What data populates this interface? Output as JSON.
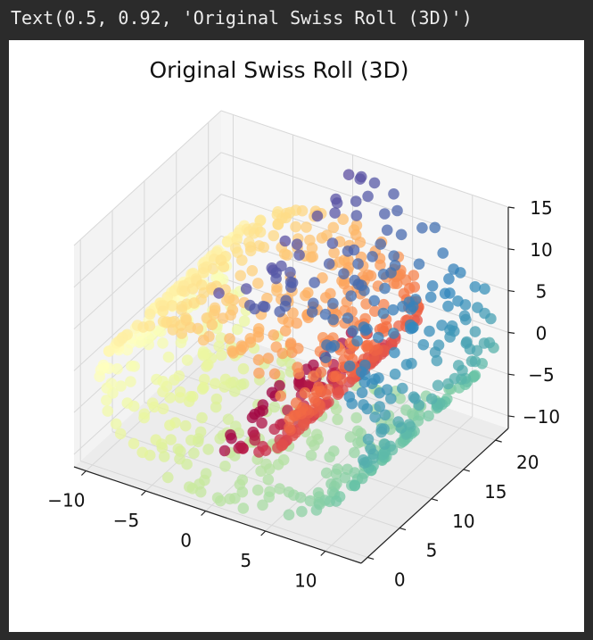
{
  "output": {
    "text": "Text(0.5, 0.92, 'Original Swiss Roll (3D)')"
  },
  "chart_data": {
    "type": "scatter",
    "projection": "3d",
    "title": "Original Swiss Roll (3D)",
    "x_ticks": [
      "−10",
      "−5",
      "0",
      "5",
      "10"
    ],
    "y_ticks": [
      "0",
      "5",
      "10",
      "15",
      "20"
    ],
    "z_ticks": [
      "−10",
      "−5",
      "0",
      "5",
      "10",
      "15"
    ],
    "xlim": [
      -11,
      13
    ],
    "ylim": [
      -1,
      22
    ],
    "zlim": [
      -11.5,
      15
    ],
    "colormap": "Spectral",
    "color_variable": "position along the roll (t)",
    "t_range": [
      4.7,
      14.1
    ],
    "n_points": 1000,
    "grid": true
  },
  "colors": {
    "background": "#2b2b2b",
    "pane": "#f2f2f2",
    "grid": "#d8d8d8",
    "spectral": [
      "#9e0142",
      "#d53e4f",
      "#f46d43",
      "#fdae61",
      "#fee08b",
      "#ffffbf",
      "#e6f598",
      "#abdda4",
      "#66c2a5",
      "#3288bd",
      "#5e4fa2"
    ]
  }
}
